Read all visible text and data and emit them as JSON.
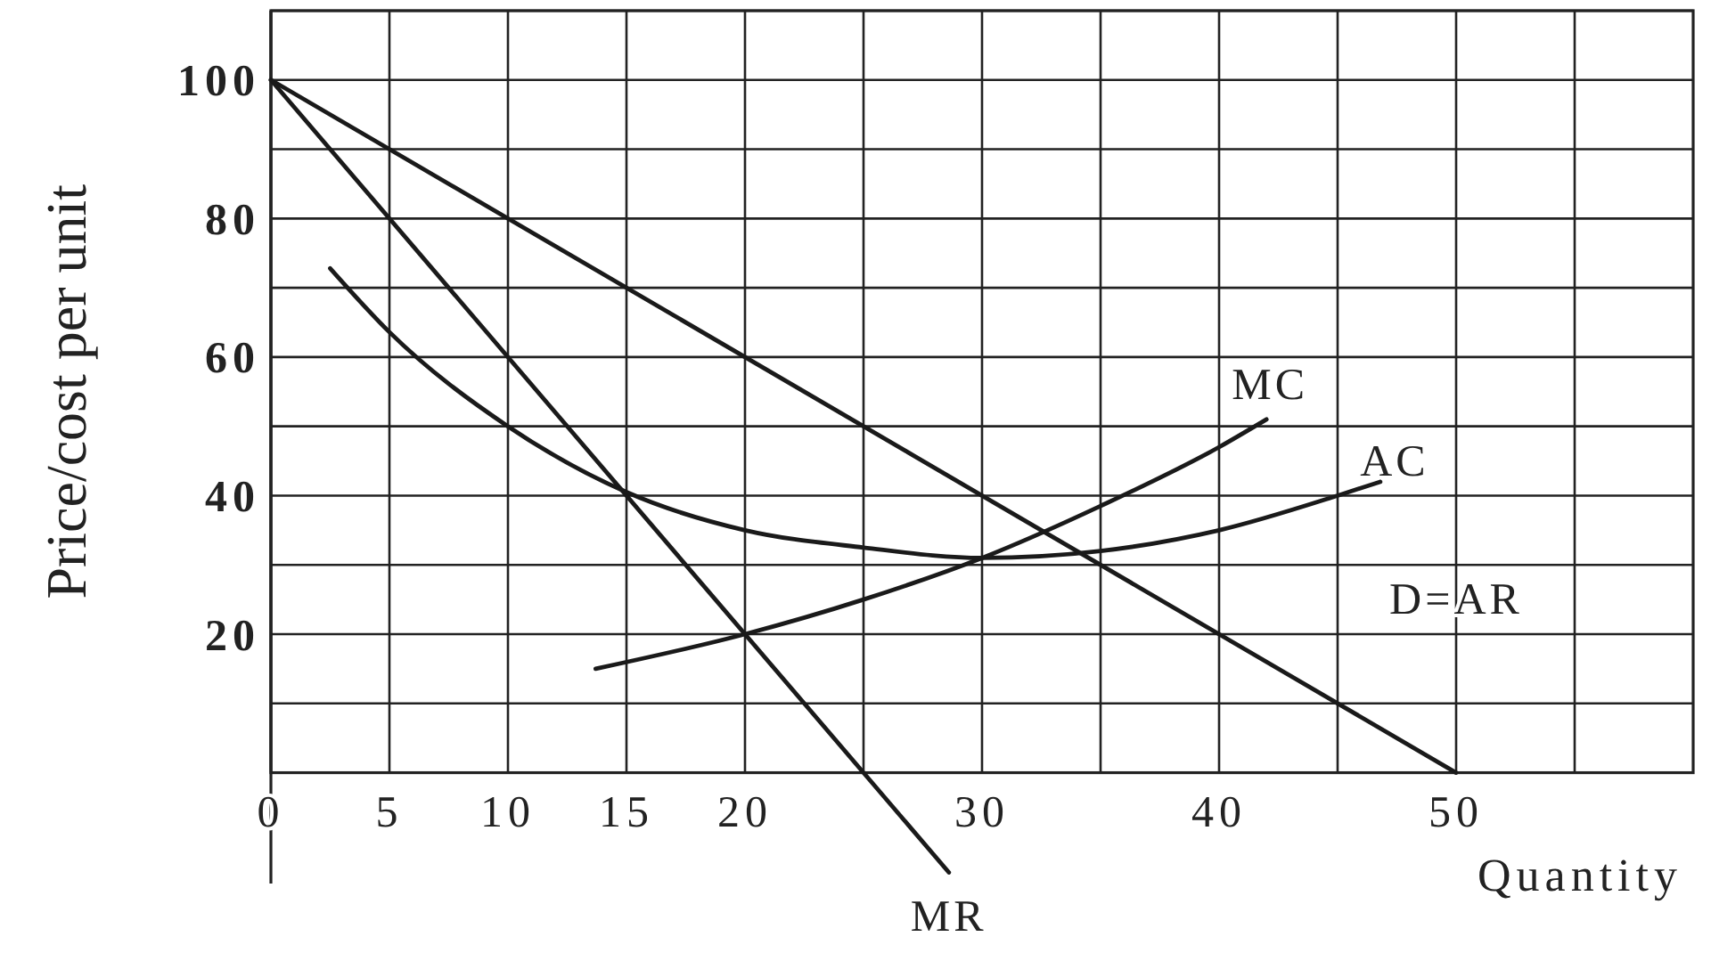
{
  "chart_data": {
    "type": "line",
    "xlabel": "Quantity",
    "ylabel": "Price/cost per unit",
    "xlim": [
      0,
      60
    ],
    "ylim": [
      -16,
      110
    ],
    "xticks": [
      0,
      5,
      10,
      15,
      20,
      {
        "value": 25,
        "label": null
      },
      30,
      {
        "value": 35,
        "label": null
      },
      40,
      {
        "value": 45,
        "label": null
      },
      50,
      {
        "value": 55,
        "label": null
      }
    ],
    "yticks": [
      {
        "value": 0,
        "label": null
      },
      {
        "value": 10,
        "label": null
      },
      20,
      {
        "value": 30,
        "label": null
      },
      40,
      {
        "value": 50,
        "label": null
      },
      60,
      {
        "value": 70,
        "label": null
      },
      80,
      {
        "value": 90,
        "label": null
      },
      100,
      {
        "value": 110,
        "label": null
      }
    ],
    "grid": true,
    "marker": "none",
    "line_style": "solid",
    "series": [
      {
        "name": "D=AR",
        "color": "#1a1a1a",
        "x": [
          0,
          50
        ],
        "values": [
          100,
          0
        ]
      },
      {
        "name": "MR",
        "color": "#1a1a1a",
        "x": [
          0,
          28.6
        ],
        "values": [
          100,
          -14.4
        ]
      },
      {
        "name": "MC",
        "color": "#1a1a1a",
        "x": [
          13.7,
          20,
          25,
          30,
          35,
          40,
          42
        ],
        "values": [
          15,
          20,
          25,
          31,
          38.5,
          47,
          51
        ]
      },
      {
        "name": "AC",
        "color": "#1a1a1a",
        "x": [
          2.5,
          5,
          10,
          15,
          20,
          25,
          30,
          35,
          40,
          45,
          46.8
        ],
        "values": [
          72.8,
          63.6,
          50,
          40.5,
          35,
          32.5,
          31,
          32,
          35,
          40,
          42
        ]
      }
    ]
  }
}
